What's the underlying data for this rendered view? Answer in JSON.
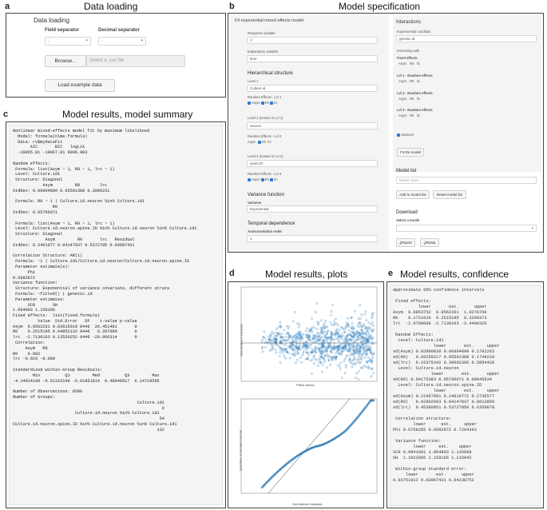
{
  "panels": {
    "a": {
      "letter": "a",
      "title": "Data loading"
    },
    "b": {
      "letter": "b",
      "title": "Model specification"
    },
    "c": {
      "letter": "c",
      "title": "Model results, model summary"
    },
    "d": {
      "letter": "d",
      "title": "Model results, plots"
    },
    "e": {
      "letter": "e",
      "title": "Model results, confidence intervals"
    }
  },
  "data_loading": {
    "heading": "Data loading",
    "field_sep_label": "Field separator",
    "field_sep_value": ";",
    "decimal_sep_label": "Decimal separator",
    "decimal_sep_value": ".",
    "browse_label": "Browse...",
    "file_placeholder": "Select a .csv file",
    "example_label": "Load example data"
  },
  "model_spec": {
    "title": "Fit exponential mixed effects model",
    "response_label": "Response variable",
    "response_value": "Y",
    "explanatory_label": "Explanatory variable",
    "explanatory_value": "time",
    "hier_heading": "Hierarchical structure",
    "level1_label": "Level 1",
    "level1_value": "Culture.id",
    "re_lvl1_label": "Random Effects - Lvl 1",
    "level2_label": "Level 2 (nested in Lvl 1)",
    "level2_value": "neuron",
    "re_lvl2_label": "Random Effects - Lvl 2",
    "level3_label": "Level 3 (nested in Lvl 2)",
    "level3_value": "spine.ID",
    "re_lvl3_label": "Random Effects - Lvl 3",
    "opt_asym": "Asym",
    "opt_r0": "R0",
    "opt_lrc": "lrc",
    "variance_heading": "Variance function",
    "variance_label": "Variance",
    "variance_value": "Exponential",
    "temporal_heading": "Temporal dependence",
    "autocorr_label": "Autocorrelation order",
    "autocorr_value": "1",
    "interactions_heading": "Interactions",
    "exp_cond_label": "Experimental condition",
    "exp_cond_value": "genetic.id",
    "interacting_label": "Interacting with",
    "fixed_effects_label": "Fixed effects",
    "lvl1_re_label": "Lvl 1 - Random effects",
    "lvl2_re_label": "Lvl 2 - Random effects",
    "lvl3_re_label": "Lvl 3 - Random effects",
    "variance_check": "Variance",
    "fit_label": "Fit the model",
    "model_list_heading": "Model list",
    "model_name_placeholder": "Model name",
    "add_model_label": "Add to model list",
    "reset_model_label": "Reset model list",
    "download_heading": "Download",
    "select_model_label": "Select a model",
    "report_label": "Report",
    "rdata_label": "RData"
  },
  "summary_text": "Nonlinear mixed-effects model fit by maximum likelihood\n  Model: formula(nlme.formula)\n  Data: rv$mydataFit\n       AIC       BIC   logLik\n  -19965.81 -19867.01 9996.903\n\nRandom effects:\n Formula: list(Asym ~ 1, R0 ~ 1, lrc ~ 1)\n Level: Culture.id1\n Structure: Diagonal\n            Asym         R0        lrc\nStdDev: 0.06904899 0.05591388 0.3000231\n\n Formula: R0 ~ 1 | Culture.id.neuron %in% Culture.id1\n                R0\nStdDev: 0.05796071\n\n Formula: list(Asym ~ 1, R0 ~ 1, lrc ~ 1)\n Level: Culture.id.neuron.spine.ID %in% Culture.id.neuron %in% Culture.id1\n Structure: Diagonal\n             Asym         R0       lrc   Residual\nStdDev: 0.2401077 0.04147837 0.5372785 0.03987431\n\nCorrelation Structure: AR(1)\n Formula: ~1 | Culture.id1/Culture.id.neuron/Culture.id.neuron.spine.ID\n Parameter estimate(s):\n      Phi\n0.6992872\nVariance function:\n Structure: Exponential of variance covariate, different strata\n Formula: ~fitted() | genetic.id\n Parameter estimates:\n      SCR       SH\n1.064903 1.159166\nFixed effects:  list(fixed.formula)\n          Value  Std.Error   DF    t-value p-value\nAsym  0.9562261 0.03615019 8446  26.451481       0\nR0    0.2515195 0.04052132 8446   6.207089       0\nlrc  -2.7130163 0.13520252 8446 -20.066314       0\n Correlation:\n     Asym   R0\nR0    0.002\nlrc -0.023 -0.000\n\nStandardized Within-Group Residuals:\n        Min          Q1         Med          Q3         Max\n-4.14814198 -0.51315140 -0.01851814  0.48946917  6.14719595\n\nNumber of Observations: 8580\nNumber of Groups:\n                                                  Culture.id1\n                                                            6\n                         Culture.id.neuron %in% Culture.id1\n                                                           54\nCulture.id.neuron.spine.ID %in% Culture.id.neuron %in% Culture.id1\n                                                          132",
  "ci_text": "Approximate 95% confidence intervals\n\n Fixed effects:\n          lower       est.      upper\nAsym  0.8853752  0.9562261  1.0270769\nR0    0.1721016  0.2515195  0.3309373\nlrc  -2.9780008 -2.7130163 -2.4480326\n\n Random Effects:\n  Level: Culture.id1\n                lower       est.     upper\nsd(Asym) 0.02800838 0.06904899 0.1702263\nsd(R0)   0.05259217 0.05591388 0.1749210\nsd(lrc)  0.15375342 0.30002306 0.5854428\n  Level: Culture.id.neuron\n               lower       est.      upper\nsd(R0) 0.04175383 0.05796071 0.08045834\n  Level: Culture.id.neuron.spine.ID\n                lower       est.     upper\nsd(Asym) 0.21067091 0.24010772 0.2736577\nsd(R0)   0.02802693 0.04147837 0.0613850\nsd(lrc)  0.45380951 0.53727850 0.6359878\n\n Correlation structure:\n        lower      est.     upper\nPhi 0.6768355 0.6992872 0.7204393\n\n Variance function:\n        lower     est.    upper\nSCR 0.9941081 1.064903 1.135698\nSH  1.1022905 1.159166 1.216042\n\n Within-group standard error:\n     lower       est.      upper\n0.03751012 0.03987431 0.04238752",
  "plots": {
    "scatter_xlabel": "Fitted values",
    "scatter_ylabel": "Standardized residuals",
    "qq_xlabel": "Normalized residuals",
    "qq_ylabel": "Quantiles of standard normal",
    "point_color": "#2878b8"
  }
}
